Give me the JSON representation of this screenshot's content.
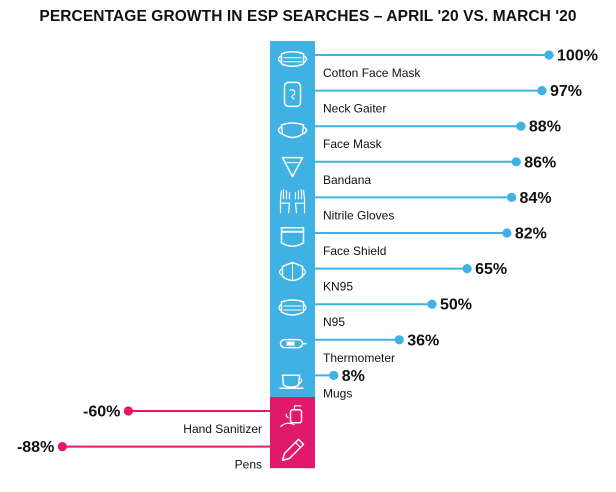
{
  "chart_data": {
    "type": "bar",
    "title": "PERCENTAGE GROWTH IN ESP SEARCHES – APRIL '20 VS. MARCH '20",
    "unit": "%",
    "categories": [
      "Cotton Face Mask",
      "Neck Gaiter",
      "Face Mask",
      "Bandana",
      "Nitrile Gloves",
      "Face Shield",
      "KN95",
      "N95",
      "Thermometer",
      "Mugs",
      "Hand Sanitizer",
      "Pens"
    ],
    "values": [
      100,
      97,
      88,
      86,
      84,
      82,
      65,
      50,
      36,
      8,
      -60,
      -88
    ],
    "value_labels": [
      "100%",
      "97%",
      "88%",
      "86%",
      "84%",
      "82%",
      "65%",
      "50%",
      "36%",
      "8%",
      "-60%",
      "-88%"
    ],
    "icons": [
      "cotton-face-mask-icon",
      "neck-gaiter-icon",
      "face-mask-icon",
      "bandana-icon",
      "nitrile-gloves-icon",
      "face-shield-icon",
      "kn95-icon",
      "n95-icon",
      "thermometer-icon",
      "mug-icon",
      "hand-sanitizer-icon",
      "pen-icon"
    ],
    "xlim": [
      -88,
      100
    ],
    "grid": false,
    "colors": {
      "positive": "#3fb1e3",
      "negative": "#e0196b",
      "text": "#111111"
    }
  }
}
